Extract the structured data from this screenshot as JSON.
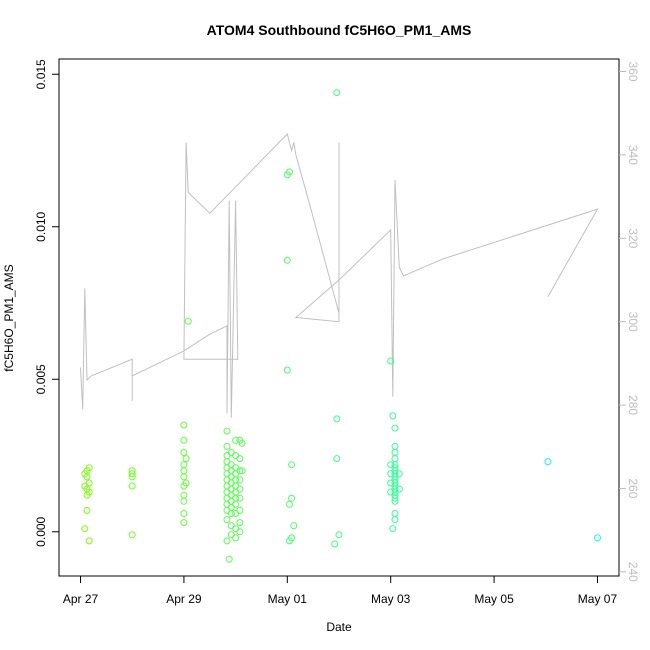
{
  "chart_data": {
    "type": "scatter",
    "title": "ATOM4 Southbound fC5H6O_PM1_AMS",
    "xlabel": "Date",
    "ylabel": "fC5H6O_PM1_AMS",
    "x_ticks": [
      "Apr 27",
      "Apr 29",
      "May 01",
      "May 03",
      "May 05",
      "May 07"
    ],
    "y_ticks": [
      "0.000",
      "0.005",
      "0.010",
      "0.015"
    ],
    "y2_ticks": [
      "240",
      "260",
      "280",
      "300",
      "320",
      "340",
      "360"
    ],
    "xlim": [
      "2016-04-26 14:00",
      "2016-05-07 10:00"
    ],
    "ylim": [
      -0.00145,
      0.0155
    ],
    "y2lim": [
      239,
      363
    ],
    "grid": false,
    "colors": {
      "points_start": "#7fff00",
      "points_end": "#00ffff",
      "line": "#c0c0c0",
      "right_axis": "#bdbdbd"
    },
    "series": [
      {
        "kind": "points",
        "points": [
          [
            "2016-04-27 02:00",
            0.0019
          ],
          [
            "2016-04-27 03:00",
            0.002
          ],
          [
            "2016-04-27 04:00",
            0.0021
          ],
          [
            "2016-04-27 03:00",
            0.0018
          ],
          [
            "2016-04-27 02:00",
            0.0015
          ],
          [
            "2016-04-27 03:00",
            0.0014
          ],
          [
            "2016-04-27 04:00",
            0.0013
          ],
          [
            "2016-04-27 03:00",
            0.0012
          ],
          [
            "2016-04-27 02:00",
            0.0001
          ],
          [
            "2016-04-27 04:00",
            -0.0003
          ],
          [
            "2016-04-27 03:00",
            0.0007
          ],
          [
            "2016-04-27 04:00",
            0.0016
          ],
          [
            "2016-04-28 00:00",
            0.002
          ],
          [
            "2016-04-28 00:00",
            0.0019
          ],
          [
            "2016-04-28 00:00",
            0.0018
          ],
          [
            "2016-04-28 00:00",
            0.0015
          ],
          [
            "2016-04-28 00:00",
            -0.0001
          ],
          [
            "2016-04-29 00:00",
            0.0035
          ],
          [
            "2016-04-29 00:00",
            0.003
          ],
          [
            "2016-04-29 00:00",
            0.0026
          ],
          [
            "2016-04-29 00:00",
            0.0022
          ],
          [
            "2016-04-29 00:00",
            0.002
          ],
          [
            "2016-04-29 00:00",
            0.0018
          ],
          [
            "2016-04-29 00:00",
            0.0015
          ],
          [
            "2016-04-29 00:00",
            0.0012
          ],
          [
            "2016-04-29 00:00",
            0.001
          ],
          [
            "2016-04-29 00:00",
            0.0006
          ],
          [
            "2016-04-29 00:00",
            0.0003
          ],
          [
            "2016-04-29 02:00",
            0.0069
          ],
          [
            "2016-04-29 01:00",
            0.0024
          ],
          [
            "2016-04-29 01:00",
            0.0016
          ],
          [
            "2016-04-29 20:00",
            0.0033
          ],
          [
            "2016-04-29 20:00",
            0.0028
          ],
          [
            "2016-04-29 20:00",
            0.0025
          ],
          [
            "2016-04-29 20:00",
            0.0023
          ],
          [
            "2016-04-29 20:00",
            0.0021
          ],
          [
            "2016-04-29 20:00",
            0.0019
          ],
          [
            "2016-04-29 20:00",
            0.0017
          ],
          [
            "2016-04-29 20:00",
            0.0015
          ],
          [
            "2016-04-29 20:00",
            0.0013
          ],
          [
            "2016-04-29 20:00",
            0.0011
          ],
          [
            "2016-04-29 20:00",
            0.0009
          ],
          [
            "2016-04-29 20:00",
            0.0007
          ],
          [
            "2016-04-29 20:00",
            0.0004
          ],
          [
            "2016-04-29 20:00",
            -0.0003
          ],
          [
            "2016-04-29 21:00",
            -0.0009
          ],
          [
            "2016-04-29 22:00",
            0.0026
          ],
          [
            "2016-04-29 22:00",
            0.0022
          ],
          [
            "2016-04-29 22:00",
            0.002
          ],
          [
            "2016-04-29 22:00",
            0.0018
          ],
          [
            "2016-04-29 22:00",
            0.0016
          ],
          [
            "2016-04-29 22:00",
            0.0014
          ],
          [
            "2016-04-29 22:00",
            0.0012
          ],
          [
            "2016-04-29 22:00",
            0.001
          ],
          [
            "2016-04-29 22:00",
            0.0008
          ],
          [
            "2016-04-29 22:00",
            0.0006
          ],
          [
            "2016-04-29 22:00",
            0.0002
          ],
          [
            "2016-04-29 22:00",
            -0.0001
          ],
          [
            "2016-04-30 00:00",
            0.003
          ],
          [
            "2016-04-30 00:00",
            0.0025
          ],
          [
            "2016-04-30 00:00",
            0.0021
          ],
          [
            "2016-04-30 00:00",
            0.0019
          ],
          [
            "2016-04-30 00:00",
            0.0017
          ],
          [
            "2016-04-30 00:00",
            0.0015
          ],
          [
            "2016-04-30 00:00",
            0.0013
          ],
          [
            "2016-04-30 00:00",
            0.0011
          ],
          [
            "2016-04-30 00:00",
            0.0009
          ],
          [
            "2016-04-30 00:00",
            0.0006
          ],
          [
            "2016-04-30 00:00",
            0.0001
          ],
          [
            "2016-04-30 00:00",
            -0.0002
          ],
          [
            "2016-04-30 02:00",
            0.003
          ],
          [
            "2016-04-30 02:00",
            0.0024
          ],
          [
            "2016-04-30 02:00",
            0.002
          ],
          [
            "2016-04-30 02:00",
            0.0017
          ],
          [
            "2016-04-30 02:00",
            0.0014
          ],
          [
            "2016-04-30 02:00",
            0.0011
          ],
          [
            "2016-04-30 02:00",
            0.0007
          ],
          [
            "2016-04-30 02:00",
            0.0003
          ],
          [
            "2016-04-30 02:00",
            0.0
          ],
          [
            "2016-04-30 03:00",
            0.0029
          ],
          [
            "2016-04-30 03:00",
            0.002
          ],
          [
            "2016-05-01 00:00",
            0.0117
          ],
          [
            "2016-05-01 01:00",
            0.0118
          ],
          [
            "2016-05-01 00:00",
            0.0089
          ],
          [
            "2016-05-01 00:00",
            0.0053
          ],
          [
            "2016-05-01 02:00",
            0.0022
          ],
          [
            "2016-05-01 02:00",
            0.0011
          ],
          [
            "2016-05-01 01:00",
            0.0009
          ],
          [
            "2016-05-01 03:00",
            0.0002
          ],
          [
            "2016-05-01 02:00",
            -0.0002
          ],
          [
            "2016-05-01 01:00",
            -0.0003
          ],
          [
            "2016-05-01 23:00",
            0.0144
          ],
          [
            "2016-05-01 23:00",
            0.0037
          ],
          [
            "2016-05-01 23:00",
            0.0024
          ],
          [
            "2016-05-02 00:00",
            -0.0001
          ],
          [
            "2016-05-01 22:00",
            -0.0004
          ],
          [
            "2016-05-03 00:00",
            0.0056
          ],
          [
            "2016-05-03 01:00",
            0.0038
          ],
          [
            "2016-05-03 02:00",
            0.0034
          ],
          [
            "2016-05-03 02:00",
            0.0028
          ],
          [
            "2016-05-03 02:00",
            0.0026
          ],
          [
            "2016-05-03 02:00",
            0.0024
          ],
          [
            "2016-05-03 02:00",
            0.0022
          ],
          [
            "2016-05-03 02:00",
            0.0021
          ],
          [
            "2016-05-03 02:00",
            0.002
          ],
          [
            "2016-05-03 02:00",
            0.0019
          ],
          [
            "2016-05-03 02:00",
            0.0018
          ],
          [
            "2016-05-03 02:00",
            0.0017
          ],
          [
            "2016-05-03 02:00",
            0.0016
          ],
          [
            "2016-05-03 02:00",
            0.0015
          ],
          [
            "2016-05-03 02:00",
            0.0014
          ],
          [
            "2016-05-03 02:00",
            0.0013
          ],
          [
            "2016-05-03 02:00",
            0.0012
          ],
          [
            "2016-05-03 02:00",
            0.0011
          ],
          [
            "2016-05-03 02:00",
            0.001
          ],
          [
            "2016-05-03 02:00",
            0.0006
          ],
          [
            "2016-05-03 02:00",
            0.0004
          ],
          [
            "2016-05-03 01:00",
            0.0001
          ],
          [
            "2016-05-03 00:00",
            0.0022
          ],
          [
            "2016-05-03 00:00",
            0.0019
          ],
          [
            "2016-05-03 00:00",
            0.0016
          ],
          [
            "2016-05-03 00:00",
            0.0013
          ],
          [
            "2016-05-03 04:00",
            0.0019
          ],
          [
            "2016-05-03 04:00",
            0.0014
          ],
          [
            "2016-05-06 01:00",
            0.0023
          ],
          [
            "2016-05-07 00:00",
            -0.0002
          ]
        ]
      },
      {
        "kind": "line",
        "axis": "right",
        "points": [
          [
            "2016-04-27 00:00",
            289
          ],
          [
            "2016-04-27 01:00",
            279
          ],
          [
            "2016-04-27 02:00",
            308
          ],
          [
            "2016-04-27 03:00",
            286
          ],
          [
            "2016-04-27 05:00",
            287
          ],
          [
            "2016-04-28 00:00",
            291
          ],
          [
            "2016-04-28 00:00",
            281
          ],
          [
            "2016-04-28 00:00",
            287
          ],
          [
            "2016-04-29 00:00",
            293
          ],
          [
            "2016-04-29 12:00",
            297
          ],
          [
            "2016-04-29 20:00",
            299
          ],
          [
            "2016-04-29 20:00",
            278
          ],
          [
            "2016-04-29 21:00",
            329
          ],
          [
            "2016-04-29 22:00",
            277
          ],
          [
            "2016-04-30 00:00",
            329
          ],
          [
            "2016-04-30 01:00",
            291
          ],
          [
            "2016-04-29 00:00",
            291
          ],
          [
            "2016-04-29 01:00",
            343
          ],
          [
            "2016-04-29 02:00",
            331
          ],
          [
            "2016-04-29 12:00",
            326
          ],
          [
            "2016-05-01 00:00",
            345
          ],
          [
            "2016-05-01 02:00",
            341
          ],
          [
            "2016-05-01 03:00",
            343
          ],
          [
            "2016-05-01 04:00",
            340
          ],
          [
            "2016-05-01 12:00",
            325
          ],
          [
            "2016-05-02 00:00",
            302
          ],
          [
            "2016-05-02 00:00",
            343
          ],
          [
            "2016-05-02 00:00",
            300
          ],
          [
            "2016-05-01 04:00",
            301
          ],
          [
            "2016-05-02 00:00",
            310
          ],
          [
            "2016-05-03 00:00",
            322
          ],
          [
            "2016-05-03 01:00",
            282
          ],
          [
            "2016-05-03 02:00",
            334
          ],
          [
            "2016-05-03 04:00",
            313
          ],
          [
            "2016-05-03 06:00",
            311
          ],
          [
            "2016-05-04 00:00",
            315
          ],
          [
            "2016-05-07 00:00",
            327
          ],
          [
            "2016-05-06 01:00",
            306
          ]
        ]
      }
    ]
  }
}
